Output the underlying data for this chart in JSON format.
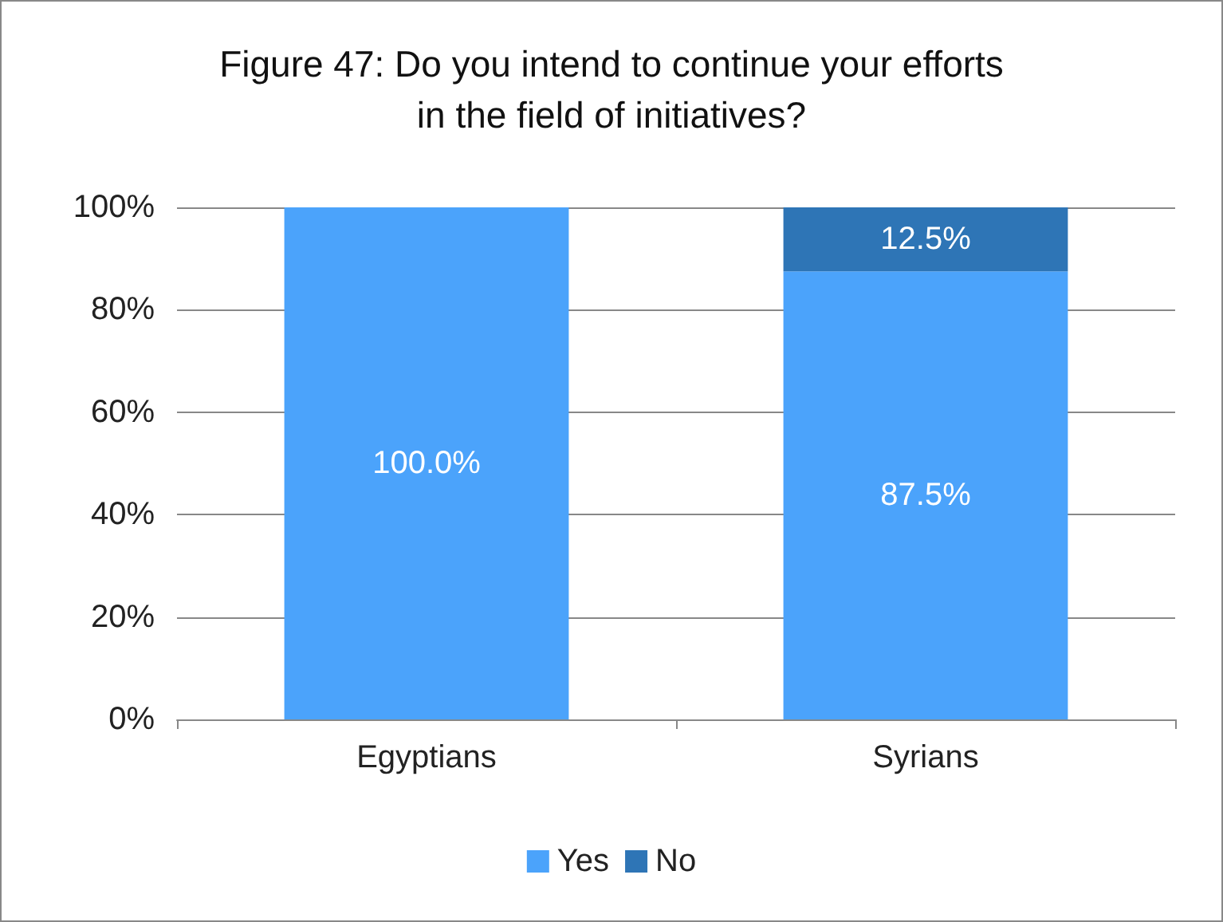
{
  "chart_data": {
    "type": "bar",
    "title": "Figure 47: Do you intend to continue your efforts\nin the field of initiatives?",
    "categories": [
      "Egyptians",
      "Syrians"
    ],
    "stacked": true,
    "series": [
      {
        "name": "Yes",
        "color": "#4ba3fb",
        "values": [
          100,
          87.5
        ],
        "value_labels": [
          "100.0%",
          "87.5%"
        ]
      },
      {
        "name": "No",
        "color": "#2e75b6",
        "values": [
          0,
          12.5
        ],
        "value_labels": [
          null,
          "12.5%"
        ]
      }
    ],
    "ylim": [
      0,
      100
    ],
    "yticks": [
      {
        "value": 0,
        "label": "0%"
      },
      {
        "value": 20,
        "label": "20%"
      },
      {
        "value": 40,
        "label": "40%"
      },
      {
        "value": 60,
        "label": "60%"
      },
      {
        "value": 80,
        "label": "80%"
      },
      {
        "value": 100,
        "label": "100%"
      }
    ],
    "grid": "y",
    "legend": "bottom"
  }
}
